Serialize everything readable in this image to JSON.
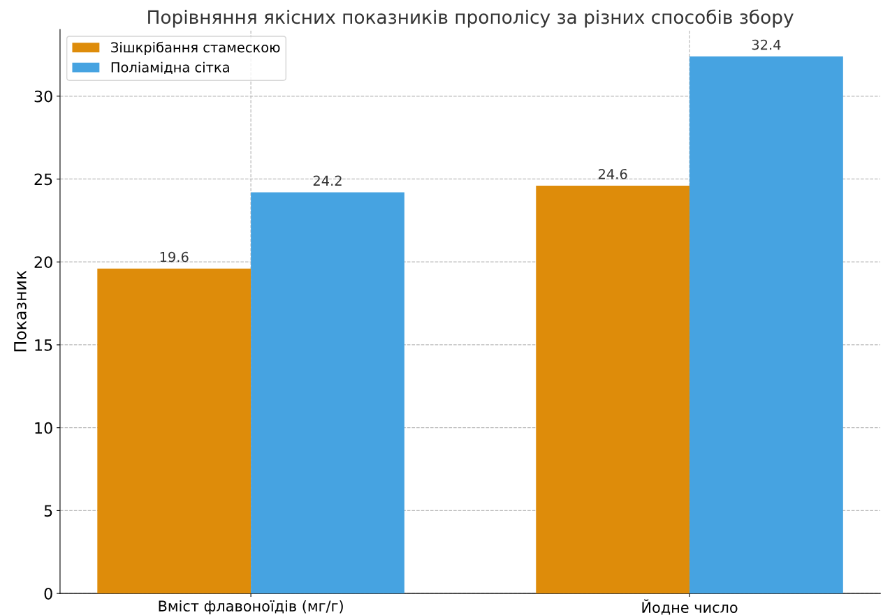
{
  "chart_data": {
    "type": "bar",
    "title": "Порівняння якісних показників прополісу за різних способів збору",
    "ylabel": "Показник",
    "categories": [
      "Вміст флавоноїдів (мг/г)",
      "Йодне число"
    ],
    "series": [
      {
        "name": "Зішкрібання стамескою",
        "color": "#de8c0a",
        "values": [
          19.6,
          24.6
        ]
      },
      {
        "name": "Поліамідна сітка",
        "color": "#46a3e1",
        "values": [
          24.2,
          32.4
        ]
      }
    ],
    "ylim": [
      0,
      34.02
    ],
    "yticks": [
      0,
      5,
      10,
      15,
      20,
      25,
      30
    ],
    "grid": true,
    "legend": "top left",
    "data_labels": true
  }
}
